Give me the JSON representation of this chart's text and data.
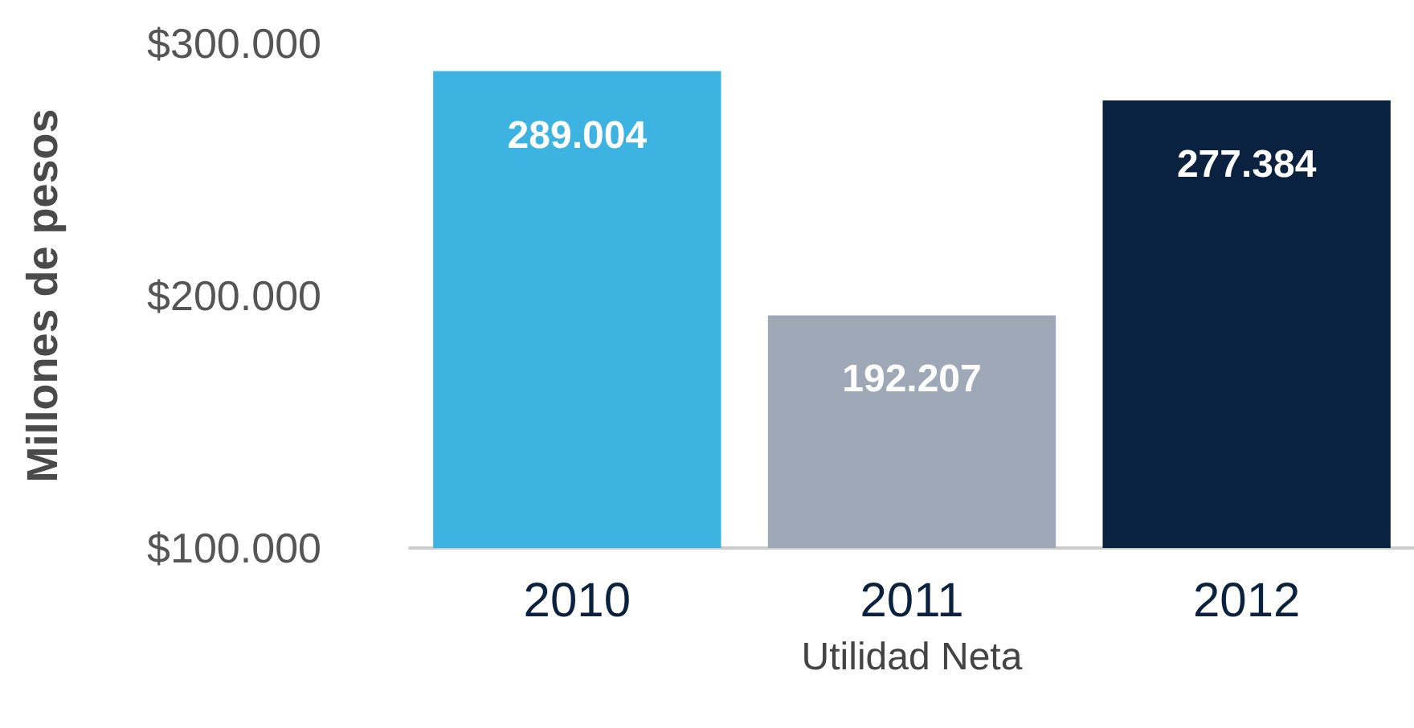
{
  "chart_data": {
    "type": "bar",
    "xlabel": "Utilidad Neta",
    "ylabel": "Millones de pesos",
    "categories": [
      "2010",
      "2011",
      "2012"
    ],
    "values": [
      289004,
      192207,
      277384
    ],
    "colors": [
      "#3cb3e0",
      "#9fa8b6",
      "#0a2240"
    ],
    "value_labels": [
      "289.004",
      "192.207",
      "277.384"
    ],
    "ylim": [
      100000,
      300000
    ],
    "yticks": [
      {
        "value": 100000,
        "label": "$100.000"
      },
      {
        "value": 200000,
        "label": "$200.000"
      },
      {
        "value": 300000,
        "label": "$300.000"
      }
    ]
  }
}
